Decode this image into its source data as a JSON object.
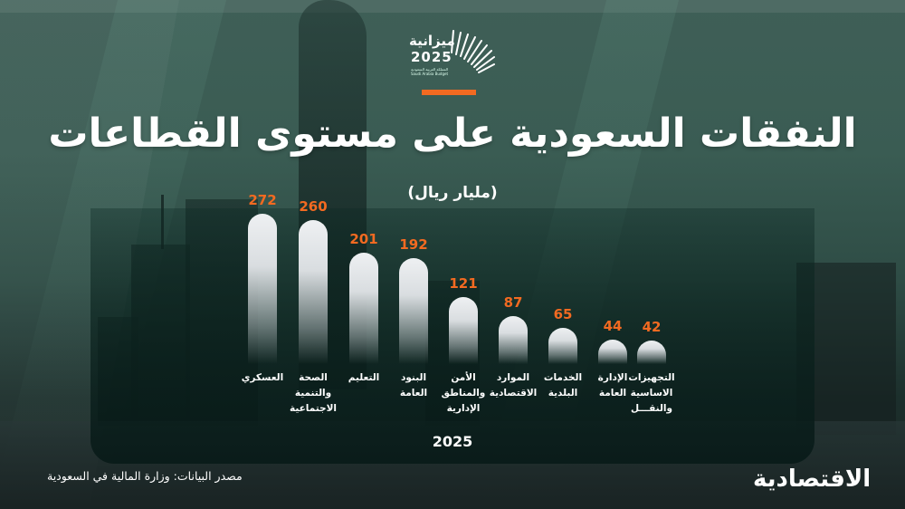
{
  "header": {
    "logo": {
      "arabic": "ميزانية",
      "year": "2025",
      "subtitle_ar": "المملكة العربية السعودية",
      "subtitle_en": "Saudi Arabia Budget"
    },
    "title": "النفقات السعودية على مستوى القطاعات",
    "unit": "(مليار ريال)"
  },
  "footer": {
    "source": "مصدر البيانات: وزارة المالية في السعودية",
    "brand": "الاقتصادية"
  },
  "colors": {
    "accent": "#f26a21",
    "bar": "#eef0f2",
    "background": "#3a5c53",
    "text": "#ffffff"
  },
  "chart_data": {
    "type": "bar",
    "title": "النفقات السعودية على مستوى القطاعات",
    "subtitle": "(مليار ريال)",
    "xlabel": "2025",
    "ylabel": "",
    "grid": false,
    "legend": "none",
    "direction": "rtl",
    "categories": [
      "العسكري",
      "الصحة والتنمية الاجتماعية",
      "التعليم",
      "البنود العامة",
      "الأمن والمناطق الإدارية",
      "الموارد الاقتصادية",
      "الخدمات البلدية",
      "الإدارة العامة",
      "التجهيزات الأساسية والنقل"
    ],
    "category_lines": [
      "العسكري",
      "الصحة\nوالتنمية\nالاجتماعية",
      "التعليم",
      "البنود\nالعامة",
      "الأمن\nوالمناطق\nالإدارية",
      "الموارد\nالاقتصادية",
      "الخدمات\nالبلدية",
      "الإدارة\nالعامة",
      "التجهيزات\nالاساسية\nوالنقـــل"
    ],
    "values": [
      272,
      260,
      201,
      192,
      121,
      87,
      65,
      44,
      42
    ],
    "value_labels": [
      "272",
      "260",
      "201",
      "192",
      "121",
      "87",
      "65",
      "44",
      "42"
    ],
    "ylim": [
      0,
      300
    ]
  }
}
